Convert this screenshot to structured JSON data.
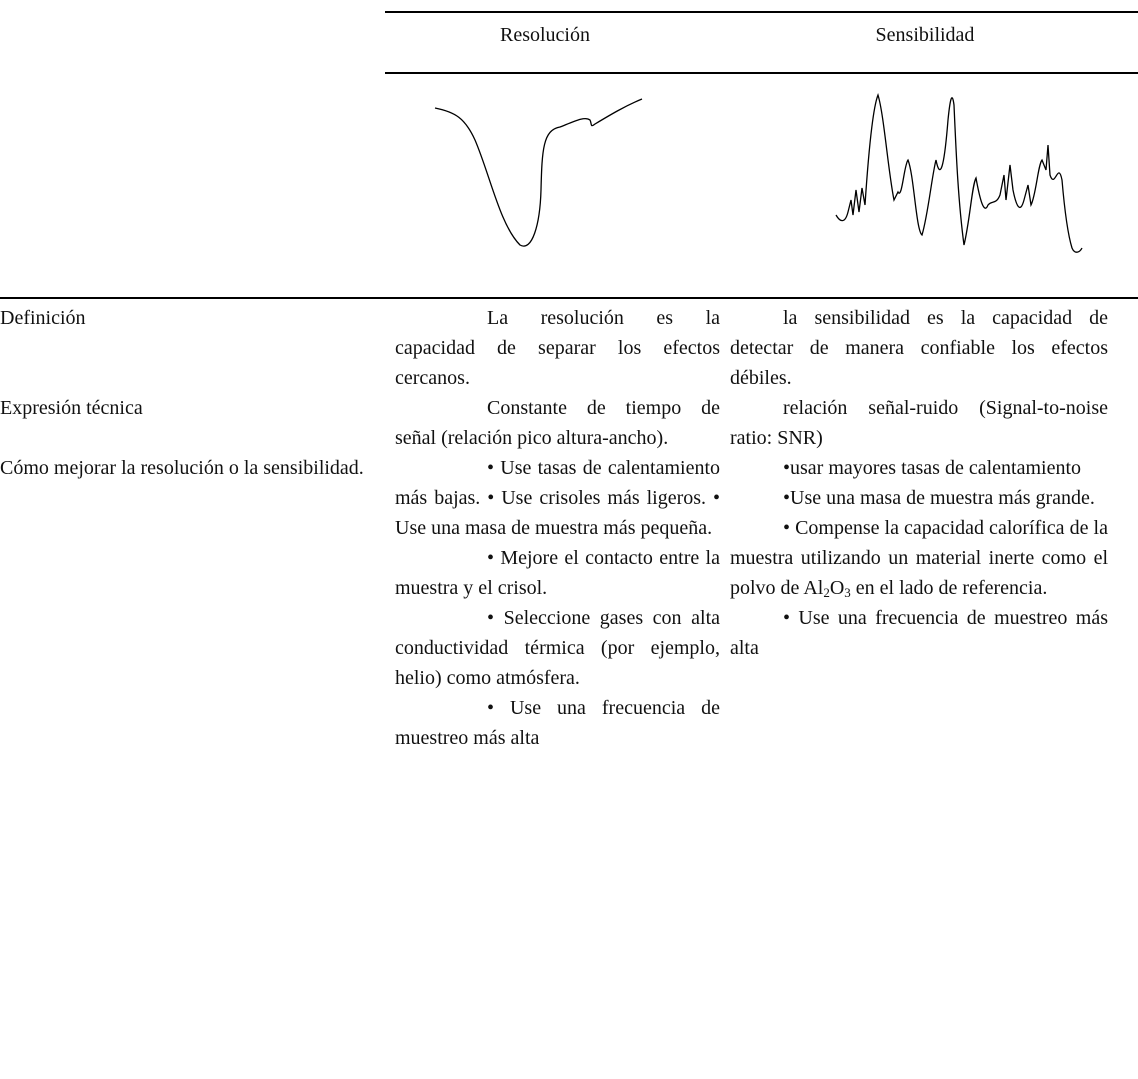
{
  "header": {
    "columns": [
      "Resolución",
      "Sensibilidad"
    ]
  },
  "table": {
    "rows": [
      {
        "label": "Definición",
        "cells": [
          [
            [
              "La resolución es la capacidad de separar los efectos cercanos."
            ]
          ],
          [
            [
              "la sensibilidad es la capacidad de detectar de manera confiable los efectos débiles."
            ]
          ]
        ]
      },
      {
        "label": "Expresión técnica",
        "cells": [
          [
            [
              "Constante de tiempo de señal (relación pico altura-ancho)."
            ]
          ],
          [
            [
              "relación señal-ruido (Signal-to-noise ratio: SNR)"
            ]
          ]
        ]
      },
      {
        "label": "Cómo mejorar la resolución o la sensibilidad.",
        "cells": [
          [
            [
              "• Use tasas de calentamiento más bajas. • Use crisoles más ligeros. • Use una masa de muestra más pequeña."
            ],
            [
              "• Mejore el contacto entre la muestra y el crisol."
            ],
            [
              "• Seleccione gases con alta conductividad térmica (por ejemplo, helio) como atmósfera."
            ],
            [
              "• Use una frecuencia de muestreo más alta"
            ]
          ],
          [
            [
              "•usar mayores tasas de calentamiento"
            ],
            [
              "•Use una masa de muestra más grande."
            ],
            [
              "• Compense la capacidad calorífica de la muestra utilizando un material inerte como el polvo de Al",
              "2",
              "O",
              "3",
              " en el lado de referencia."
            ],
            [
              "• Use una frecuencia de muestreo más alta"
            ]
          ]
        ]
      }
    ]
  }
}
